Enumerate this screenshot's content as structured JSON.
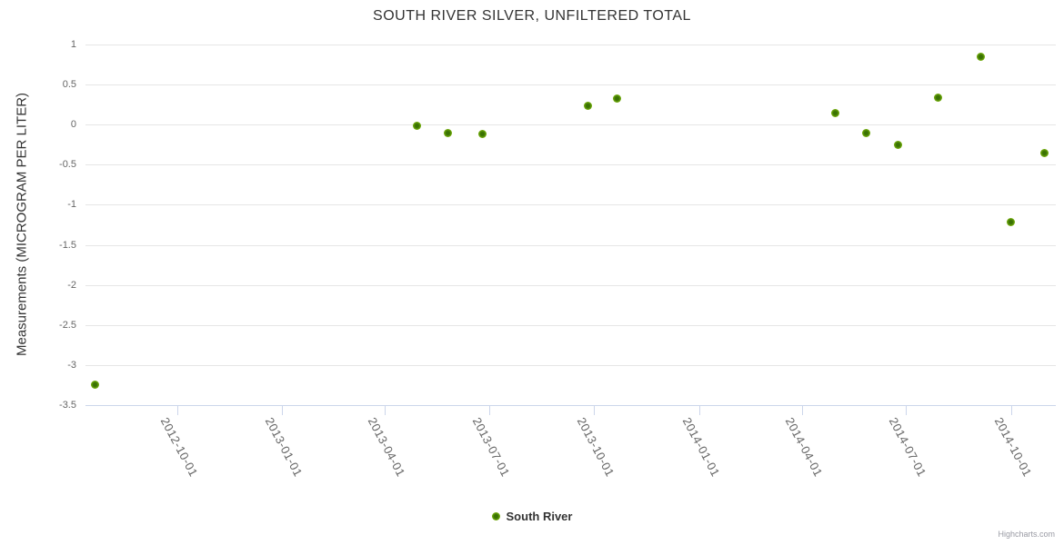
{
  "chart": {
    "credits": "Highcharts.com"
  },
  "colors": {
    "background": "#ffffff",
    "title_text": "#333333",
    "axis_label_text": "#666666",
    "gridline": "#e6e6e6",
    "axis_line": "#ccd6eb",
    "series_marker_outer": "#7ab githubb40e",
    "series_marker_center": "#3a7203",
    "legend_text": "#333333",
    "credits_text": "#999aa3"
  },
  "legend": {
    "label": "South River"
  },
  "chart_data": {
    "type": "scatter",
    "title": "SOUTH RIVER SILVER, UNFILTERED TOTAL",
    "xlabel": "",
    "ylabel": "Measurements (MICROGRAM PER LITER)",
    "x_type": "datetime",
    "x_min": "2012-07-13",
    "x_max": "2014-11-09",
    "ylim": [
      -3.5,
      1
    ],
    "y_ticks": [
      1,
      0.5,
      0,
      -0.5,
      -1,
      -1.5,
      -2,
      -2.5,
      -3,
      -3.5
    ],
    "x_ticks": [
      "2012-10-01",
      "2013-01-01",
      "2013-04-01",
      "2013-07-01",
      "2013-10-01",
      "2014-01-01",
      "2014-04-01",
      "2014-07-01",
      "2014-10-01"
    ],
    "grid": true,
    "legend_position": "bottom-center",
    "series": [
      {
        "name": "South River",
        "color": "#7ab40e",
        "marker_center_color": "#3a7203",
        "points": [
          {
            "x": "2012-07-21",
            "y": -3.25
          },
          {
            "x": "2013-04-29",
            "y": -0.02
          },
          {
            "x": "2013-05-26",
            "y": -0.1
          },
          {
            "x": "2013-06-25",
            "y": -0.12
          },
          {
            "x": "2013-09-26",
            "y": 0.23
          },
          {
            "x": "2013-10-21",
            "y": 0.33
          },
          {
            "x": "2014-04-30",
            "y": 0.14
          },
          {
            "x": "2014-05-27",
            "y": -0.11
          },
          {
            "x": "2014-06-24",
            "y": -0.25
          },
          {
            "x": "2014-07-29",
            "y": 0.34
          },
          {
            "x": "2014-09-04",
            "y": 0.85
          },
          {
            "x": "2014-10-01",
            "y": -1.22
          },
          {
            "x": "2014-10-30",
            "y": -0.35
          }
        ]
      }
    ]
  }
}
